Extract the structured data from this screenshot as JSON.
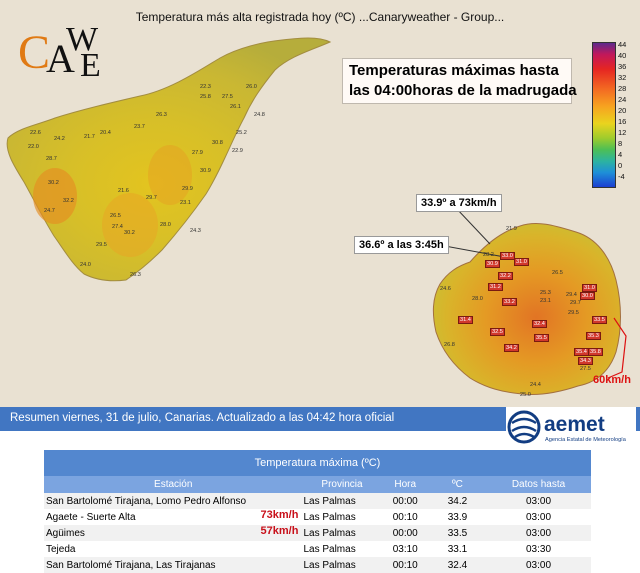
{
  "header": {
    "text": "Temperatura más alta registrada hoy (ºC)       ...Canaryweather - Group..."
  },
  "logo": {
    "letters": [
      "C",
      "A",
      "W",
      "E"
    ]
  },
  "title_box": {
    "line1": "Temperaturas máximas hasta",
    "line2": "las 04:00horas de la madrugada"
  },
  "legend": {
    "ticks": [
      "44",
      "40",
      "36",
      "32",
      "28",
      "24",
      "20",
      "16",
      "12",
      "8",
      "4",
      "0",
      "-4"
    ]
  },
  "callouts": {
    "agaete": "33.9º a 73km/h",
    "aguimes": "36.6º a las 3:45h",
    "wind_se": "60km/h"
  },
  "tenerife_values": [
    "22.6",
    "30.2",
    "32.2",
    "24.7",
    "24.0",
    "30.2",
    "29.5",
    "26.3",
    "30.8",
    "30.9",
    "29.9",
    "27.5",
    "25.8",
    "28.0",
    "24.2",
    "22.3",
    "24.8",
    "23.1",
    "26.3",
    "21.6",
    "29.7",
    "22.0",
    "23.7",
    "20.4",
    "21.7",
    "28.7",
    "26.5",
    "27.4",
    "24.3",
    "22.9",
    "27.9",
    "25.2",
    "26.1",
    "26.0"
  ],
  "grancanaria_values": [
    "21.9",
    "28.2",
    "30.9",
    "33.0",
    "31.0",
    "32.2",
    "31.2",
    "33.2",
    "31.4",
    "32.5",
    "34.2",
    "35.5",
    "32.4",
    "31.0",
    "30.0",
    "29.4",
    "29.7",
    "29.5",
    "33.5",
    "35.3",
    "35.4",
    "35.8",
    "34.3",
    "27.5",
    "24.6",
    "26.5",
    "25.3",
    "23.1",
    "24.4",
    "26.8",
    "28.0",
    "25.0"
  ],
  "info_bar": {
    "text": "Resumen viernes, 31 de julio, Canarias. Actualizado a las 04:42 hora oficial"
  },
  "aemet": {
    "name": "aemet",
    "subtitle": "Agencia Estatal de Meteorología"
  },
  "table": {
    "caption": "Temperatura máxima (ºC)",
    "headers": [
      "Estación",
      "Provincia",
      "Hora",
      "ºC",
      "Datos hasta"
    ],
    "rows": [
      {
        "station": "San Bartolomé Tirajana, Lomo Pedro Alfonso",
        "wind": "",
        "province": "Las Palmas",
        "hour": "00:00",
        "temp": "34.2",
        "until": "03:00"
      },
      {
        "station": "Agaete - Suerte Alta",
        "wind": "73km/h",
        "province": "Las Palmas",
        "hour": "00:10",
        "temp": "33.9",
        "until": "03:00"
      },
      {
        "station": "Agüimes",
        "wind": "57km/h",
        "province": "Las Palmas",
        "hour": "00:00",
        "temp": "33.5",
        "until": "03:00"
      },
      {
        "station": "Tejeda",
        "wind": "",
        "province": "Las Palmas",
        "hour": "03:10",
        "temp": "33.1",
        "until": "03:30"
      },
      {
        "station": "San Bartolomé Tirajana, Las Tirajanas",
        "wind": "",
        "province": "Las Palmas",
        "hour": "00:10",
        "temp": "32.4",
        "until": "03:00"
      }
    ]
  }
}
